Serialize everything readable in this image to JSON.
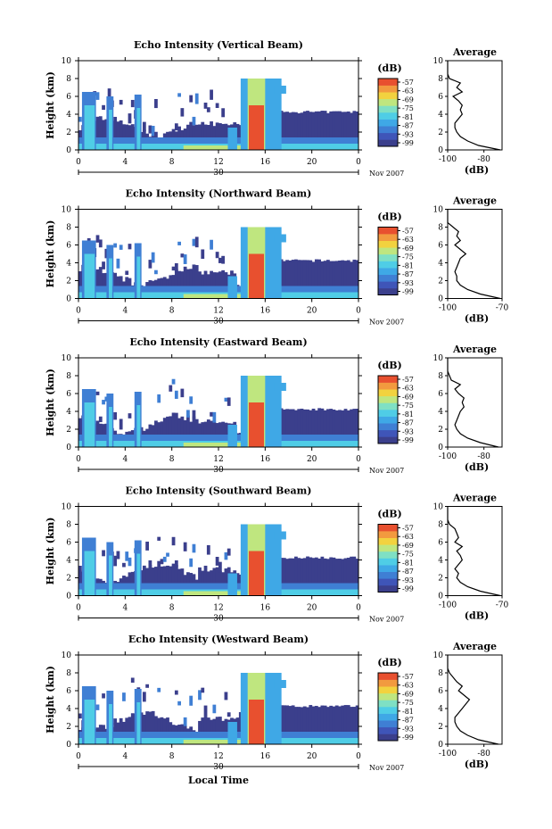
{
  "colors": {
    "background": "#ffffff",
    "colorbar": [
      "#3b3f8c",
      "#3f55b8",
      "#3f7fd4",
      "#3fa8e6",
      "#4fcde6",
      "#7fe0c4",
      "#bfe67f",
      "#f2d23f",
      "#f29a3f",
      "#e8502f"
    ],
    "echo_top": "#ee4030",
    "line": "#000000"
  },
  "shared": {
    "height_label": "Height (km)",
    "unit_label": "(dB)",
    "average_title": "Average",
    "date_day": "30",
    "date_month": "Nov 2007",
    "x_ticks": [
      "0",
      "4",
      "8",
      "12",
      "16",
      "20",
      "0"
    ],
    "y_ticks": [
      "0",
      "2",
      "4",
      "6",
      "8",
      "10"
    ],
    "colorbar_ticks": [
      "-57",
      "-63",
      "-69",
      "-75",
      "-81",
      "-87",
      "-93",
      "-99"
    ],
    "xaxis_title": "Local Time"
  },
  "chart_data": [
    {
      "type": "heatmap",
      "title": "Echo Intensity (Vertical Beam)",
      "x_range": [
        0,
        24
      ],
      "y_range": [
        0,
        10
      ],
      "value_range": [
        -99,
        -57
      ],
      "profile": {
        "xlim": [
          -100,
          -70
        ],
        "x_ticks": [
          "-100",
          "-80"
        ],
        "ylim": [
          0,
          10
        ],
        "heights": [
          0,
          0.5,
          1,
          1.5,
          2,
          2.5,
          3,
          3.5,
          4,
          4.5,
          5,
          5.5,
          6,
          6.5,
          7,
          7.5,
          8,
          8.5,
          9,
          10
        ],
        "values": [
          -71,
          -83,
          -89,
          -93,
          -95,
          -96,
          -96,
          -94,
          -92,
          -93,
          -92,
          -94,
          -97,
          -92,
          -95,
          -93,
          -99,
          -100,
          -100,
          -100
        ]
      }
    },
    {
      "type": "heatmap",
      "title": "Echo Intensity (Northward Beam)",
      "x_range": [
        0,
        24
      ],
      "y_range": [
        0,
        10
      ],
      "value_range": [
        -99,
        -57
      ],
      "profile": {
        "xlim": [
          -100,
          -70
        ],
        "x_ticks": [
          "-100",
          "-70"
        ],
        "ylim": [
          0,
          10
        ],
        "heights": [
          0,
          0.5,
          1,
          1.5,
          2,
          2.5,
          3,
          3.5,
          4,
          4.5,
          5,
          5.5,
          6,
          6.5,
          7,
          7.5,
          8,
          8.5,
          9,
          10
        ],
        "values": [
          -71,
          -82,
          -89,
          -93,
          -95,
          -95,
          -96,
          -95,
          -94,
          -93,
          -90,
          -93,
          -96,
          -93,
          -95,
          -94,
          -97,
          -100,
          -100,
          -100
        ]
      }
    },
    {
      "type": "heatmap",
      "title": "Echo Intensity (Eastward Beam)",
      "x_range": [
        0,
        24
      ],
      "y_range": [
        0,
        10
      ],
      "value_range": [
        -99,
        -57
      ],
      "profile": {
        "xlim": [
          -100,
          -70
        ],
        "x_ticks": [
          "-100",
          "-80"
        ],
        "ylim": [
          0,
          10
        ],
        "heights": [
          0,
          0.5,
          1,
          1.5,
          2,
          2.5,
          3,
          3.5,
          4,
          4.5,
          5,
          5.5,
          6,
          6.5,
          7,
          7.5,
          8,
          8.5,
          9,
          10
        ],
        "values": [
          -72,
          -82,
          -89,
          -93,
          -95,
          -96,
          -95,
          -94,
          -93,
          -91,
          -92,
          -91,
          -94,
          -96,
          -93,
          -98,
          -99,
          -100,
          -100,
          -100
        ]
      }
    },
    {
      "type": "heatmap",
      "title": "Echo Intensity (Southward Beam)",
      "x_range": [
        0,
        24
      ],
      "y_range": [
        0,
        10
      ],
      "value_range": [
        -99,
        -57
      ],
      "profile": {
        "xlim": [
          -100,
          -70
        ],
        "x_ticks": [
          "-100",
          "-70"
        ],
        "ylim": [
          0,
          10
        ],
        "heights": [
          0,
          0.5,
          1,
          1.5,
          2,
          2.5,
          3,
          3.5,
          4,
          4.5,
          5,
          5.5,
          6,
          6.5,
          7,
          7.5,
          8,
          8.5,
          9,
          10
        ],
        "values": [
          -71,
          -82,
          -89,
          -93,
          -95,
          -94,
          -96,
          -94,
          -92,
          -93,
          -95,
          -92,
          -96,
          -94,
          -95,
          -96,
          -99,
          -100,
          -100,
          -100
        ]
      }
    },
    {
      "type": "heatmap",
      "title": "Echo Intensity (Westward Beam)",
      "x_range": [
        0,
        24
      ],
      "y_range": [
        0,
        10
      ],
      "value_range": [
        -99,
        -57
      ],
      "profile": {
        "xlim": [
          -100,
          -70
        ],
        "x_ticks": [
          "-100",
          "-80"
        ],
        "ylim": [
          0,
          10
        ],
        "heights": [
          0,
          0.5,
          1,
          1.5,
          2,
          2.5,
          3,
          3.5,
          4,
          4.5,
          5,
          5.5,
          6,
          6.5,
          7,
          7.5,
          8,
          8.5,
          9,
          10
        ],
        "values": [
          -72,
          -83,
          -89,
          -93,
          -95,
          -96,
          -96,
          -94,
          -92,
          -90,
          -88,
          -91,
          -94,
          -92,
          -95,
          -97,
          -99,
          -100,
          -100,
          -100
        ]
      }
    }
  ]
}
